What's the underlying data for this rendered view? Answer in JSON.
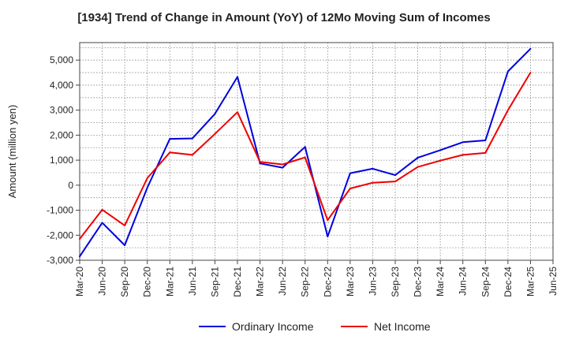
{
  "chart_data": {
    "type": "line",
    "title": "[1934]  Trend of Change in Amount (YoY) of 12Mo Moving Sum of Incomes",
    "xlabel": "",
    "ylabel": "Amount (million yen)",
    "ylim": [
      -3000,
      5700
    ],
    "yticks": [
      -3000,
      -2000,
      -1000,
      0,
      1000,
      2000,
      3000,
      4000,
      5000
    ],
    "ytick_labels": [
      "-3,000",
      "-2,000",
      "-1,000",
      "0",
      "1,000",
      "2,000",
      "3,000",
      "4,000",
      "5,000"
    ],
    "categories": [
      "Mar-20",
      "Jun-20",
      "Sep-20",
      "Dec-20",
      "Mar-21",
      "Jun-21",
      "Sep-21",
      "Dec-21",
      "Mar-22",
      "Jun-22",
      "Sep-22",
      "Dec-22",
      "Mar-23",
      "Jun-23",
      "Sep-23",
      "Dec-23",
      "Mar-24",
      "Jun-24",
      "Sep-24",
      "Dec-24",
      "Mar-25",
      "Jun-25"
    ],
    "grid": true,
    "legend_position": "bottom-center",
    "series": [
      {
        "name": "Ordinary Income",
        "color": "#0000dd",
        "values": [
          -2850,
          -1500,
          -2400,
          -100,
          1850,
          1870,
          2850,
          4330,
          870,
          700,
          1530,
          -2050,
          480,
          660,
          400,
          1100,
          1400,
          1720,
          1790,
          4550,
          5450,
          null
        ]
      },
      {
        "name": "Net Income",
        "color": "#ee0000",
        "values": [
          -2150,
          -980,
          -1610,
          280,
          1310,
          1210,
          2050,
          2920,
          930,
          830,
          1110,
          -1400,
          -130,
          100,
          150,
          730,
          980,
          1210,
          1290,
          3000,
          4500,
          null
        ]
      }
    ]
  }
}
